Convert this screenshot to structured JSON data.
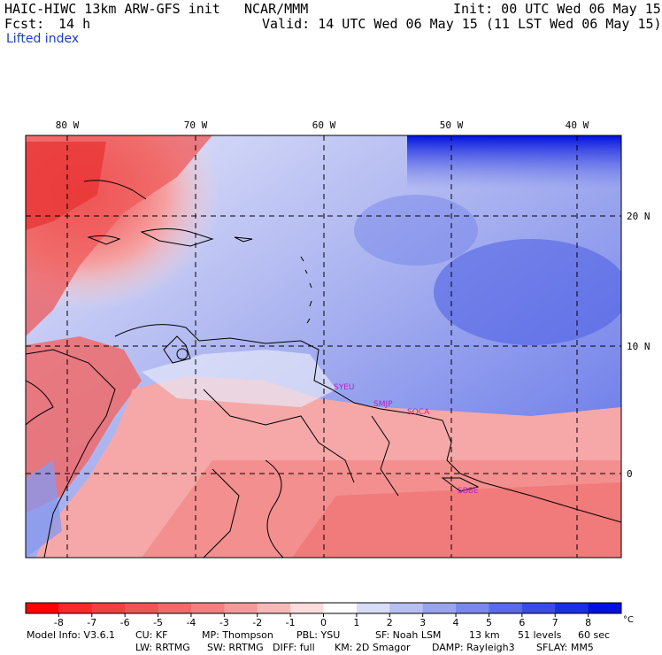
{
  "header": {
    "model_title": "HAIC-HIWC 13km ARW-GFS init",
    "agency": "NCAR/MMM",
    "init_time": "Init: 00 UTC Wed 06 May 15",
    "forecast_label": "Fcst:",
    "forecast_hours": "14 h",
    "valid_time": "Valid: 14 UTC Wed 06 May 15 (11 LST Wed 06 May 15)",
    "field_name": "Lifted index"
  },
  "map": {
    "lon_labels": [
      "80 W",
      "70 W",
      "60 W",
      "50 W",
      "40 W"
    ],
    "lat_labels": [
      "20 N",
      "10 N",
      "0"
    ],
    "stations": [
      "SYEU",
      "SMJP",
      "SOCA",
      "SBBE"
    ],
    "station_color": "#c020c0",
    "gridline_color": "#000000",
    "coastline_color": "#000000"
  },
  "colorbar": {
    "ticks": [
      "-8",
      "-7",
      "-6",
      "-5",
      "-4",
      "-3",
      "-2",
      "-1",
      "0",
      "1",
      "2",
      "3",
      "4",
      "5",
      "6",
      "7",
      "8"
    ],
    "unit": "°C",
    "colors": [
      "#ff0000",
      "#f52a2a",
      "#f04040",
      "#ee5555",
      "#f06a6a",
      "#f28080",
      "#f59a9a",
      "#f8b8b8",
      "#fcdcdc",
      "#ffffff",
      "#d8ddf8",
      "#b8c0f2",
      "#9aa4ee",
      "#7a88ea",
      "#5a6ae8",
      "#3a4ce6",
      "#1a2ee4",
      "#0010e0"
    ]
  },
  "footer": {
    "line1": [
      "Model Info: V3.6.1",
      "CU: KF",
      "MP: Thompson",
      "PBL: YSU",
      "SF: Noah LSM",
      "13 km",
      "51 levels",
      "60 sec"
    ],
    "line2": [
      "LW: RRTMG",
      "SW: RRTMG",
      "DIFF: full",
      "KM: 2D Smagor",
      "DAMP: Rayleigh3",
      "SFLAY: MM5"
    ]
  }
}
